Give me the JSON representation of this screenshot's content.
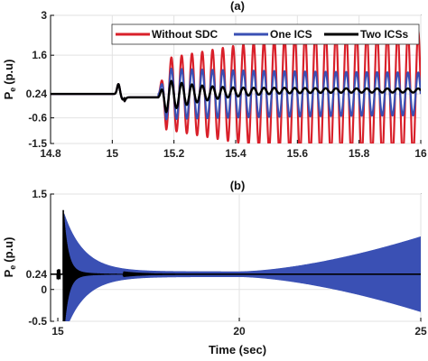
{
  "chart_data": [
    {
      "type": "line",
      "panel_label": "(a)",
      "ylabel_main": "P",
      "ylabel_sub": "e",
      "ylabel_unit": "(p.u)",
      "xlabel": "",
      "xlim": [
        14.8,
        16
      ],
      "ylim": [
        -1.5,
        3
      ],
      "xticks": [
        14.8,
        15,
        15.2,
        15.4,
        15.6,
        15.8,
        16
      ],
      "xtick_labels": [
        "14.8",
        "15",
        "15.2",
        "15.4",
        "15.6",
        "15.8",
        "16"
      ],
      "yticks": [
        -1.5,
        -0.6,
        0.24,
        1.6,
        3
      ],
      "ytick_labels": [
        "-1.5",
        "-0.6",
        "0.24",
        "1.6",
        "3"
      ],
      "grid": true,
      "legend_position": "top-right",
      "series": [
        {
          "name": "Without SDC",
          "color": "#d9202a",
          "steady": 0.24,
          "disturbance_time": 15.15,
          "oscillation_amplitude": 2.0,
          "frequency_hz": 30,
          "envelope": "growing"
        },
        {
          "name": "One ICS",
          "color": "#3a50b4",
          "steady": 0.24,
          "disturbance_time": 15.15,
          "oscillation_amplitude": 0.9,
          "frequency_hz": 30,
          "envelope": "sustained"
        },
        {
          "name": "Two ICSs",
          "color": "#000000",
          "steady": 0.24,
          "disturbance_time": 15.15,
          "oscillation_amplitude": 0.6,
          "frequency_hz": 30,
          "envelope": "damped"
        }
      ]
    },
    {
      "type": "line",
      "panel_label": "(b)",
      "ylabel_main": "P",
      "ylabel_sub": "e",
      "ylabel_unit": "(p.u)",
      "xlabel": "Time (sec)",
      "xlim": [
        14.8,
        25
      ],
      "ylim": [
        -0.5,
        1.5
      ],
      "xticks": [
        15,
        20,
        25
      ],
      "xtick_labels": [
        "15",
        "20",
        "25"
      ],
      "yticks": [
        -0.5,
        0,
        0.24,
        1.5
      ],
      "ytick_labels": [
        "-0.5",
        "0",
        "0.24",
        "1.5"
      ],
      "grid": true,
      "series": [
        {
          "color": "#3a50b4",
          "steady": 0.24,
          "disturbance_time": 15.15,
          "envelope": "decays-then-grows",
          "envelope_min_time": 20,
          "envelope_end_amplitude": 0.55
        },
        {
          "color": "#000000",
          "steady": 0.24,
          "disturbance_time": 15.15,
          "envelope": "damped"
        }
      ]
    }
  ]
}
